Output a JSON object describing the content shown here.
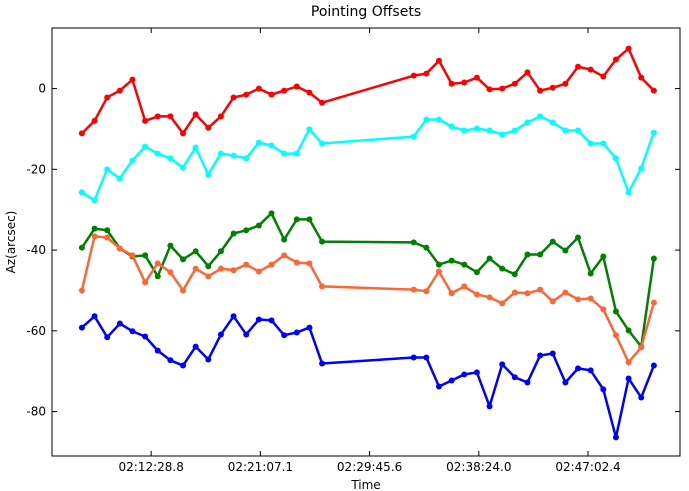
{
  "chart_data": {
    "type": "line",
    "title": "Pointing Offsets",
    "xlabel": "Time",
    "ylabel": "Az(arcsec)",
    "x": [
      "02:07:00",
      "02:08:00",
      "02:09:00",
      "02:10:00",
      "02:11:00",
      "02:12:00",
      "02:13:00",
      "02:14:00",
      "02:15:00",
      "02:16:00",
      "02:17:00",
      "02:18:00",
      "02:19:00",
      "02:20:00",
      "02:21:00",
      "02:22:00",
      "02:23:00",
      "02:24:00",
      "02:25:00",
      "02:26:00",
      "02:33:15",
      "02:34:15",
      "02:35:15",
      "02:36:15",
      "02:37:15",
      "02:38:15",
      "02:39:15",
      "02:40:15",
      "02:41:15",
      "02:42:15",
      "02:43:15",
      "02:44:15",
      "02:45:15",
      "02:46:15",
      "02:47:15",
      "02:48:15",
      "02:49:15",
      "02:50:15",
      "02:51:15",
      "02:52:15"
    ],
    "series": [
      {
        "color": "#ff0000",
        "values": [
          -11.1,
          -8,
          -2.2,
          -0.5,
          2.2,
          -8,
          -6.9,
          -6.9,
          -11.1,
          -6.4,
          -9.7,
          -6.9,
          -2.2,
          -1.5,
          0,
          -1.5,
          -0.5,
          0.5,
          -1,
          -3.5,
          3.2,
          3.7,
          6.9,
          1.2,
          1.5,
          2.7,
          -0.2,
          0,
          1.2,
          4,
          -0.5,
          0.2,
          1.2,
          5.4,
          4.7,
          3,
          7.2,
          9.9,
          2.7,
          -0.5
        ]
      },
      {
        "color": "#00ffff",
        "values": [
          -25.7,
          -27.7,
          -20,
          -22.3,
          -17.8,
          -14.4,
          -16.1,
          -17.3,
          -19.6,
          -14.6,
          -21.3,
          -16.1,
          -16.6,
          -17.3,
          -13.4,
          -14.1,
          -16.1,
          -16.1,
          -10.1,
          -13.6,
          -11.9,
          -7.7,
          -7.7,
          -9.4,
          -10.4,
          -9.9,
          -10.4,
          -11.4,
          -10.4,
          -8.4,
          -6.9,
          -8.4,
          -10.4,
          -10.4,
          -13.6,
          -13.6,
          -17.3,
          -25.7,
          -19.8,
          -10.9
        ]
      },
      {
        "color": "#008000",
        "values": [
          -39.4,
          -34.7,
          -35.1,
          -39.6,
          -41.6,
          -41.3,
          -46.5,
          -38.9,
          -42.3,
          -40.3,
          -44,
          -40.3,
          -35.9,
          -35.1,
          -33.9,
          -30.9,
          -37.4,
          -32.4,
          -32.4,
          -37.9,
          -38.1,
          -39.4,
          -43.6,
          -42.6,
          -43.6,
          -45.5,
          -42.1,
          -44.6,
          -46,
          -41.1,
          -41.1,
          -37.9,
          -40.1,
          -36.9,
          -45.8,
          -41.6,
          -55.2,
          -59.9,
          -63.9,
          -42.1
        ]
      },
      {
        "color": "#ff6633",
        "values": [
          -50,
          -36.6,
          -36.9,
          -39.6,
          -41.3,
          -48,
          -43.3,
          -45.5,
          -50,
          -44.6,
          -46.5,
          -44.6,
          -45,
          -43.6,
          -45.3,
          -43.6,
          -41.3,
          -43.1,
          -43.3,
          -49,
          -49.8,
          -50.2,
          -45.3,
          -50.7,
          -49,
          -51,
          -51.7,
          -53.2,
          -50.5,
          -50.7,
          -49.8,
          -52.7,
          -50.5,
          -52.2,
          -52,
          -54.7,
          -61.1,
          -67.8,
          -64.1,
          -53
        ]
      },
      {
        "color": "#0000ff",
        "values": [
          -59.2,
          -56.4,
          -61.6,
          -58.2,
          -60.1,
          -61.4,
          -64.9,
          -67.3,
          -68.6,
          -63.9,
          -67.1,
          -60.9,
          -56.4,
          -60.9,
          -57.2,
          -57.4,
          -61.1,
          -60.4,
          -59.2,
          -68.1,
          -66.6,
          -66.6,
          -73.8,
          -72.3,
          -70.8,
          -70.3,
          -78.7,
          -68.3,
          -71.5,
          -72.8,
          -66.1,
          -65.6,
          -72.8,
          -69.3,
          -69.8,
          -74.5,
          -86.4,
          -71.8,
          -76.5,
          -68.6
        ]
      }
    ],
    "xlim": [
      "02:04:38",
      "02:54:19"
    ],
    "xticks": [
      "02:12:28.8",
      "02:21:07.1",
      "02:29:45.6",
      "02:38:24.0",
      "02:47:02.4"
    ],
    "ylim": [
      -91,
      15
    ],
    "yticks": [
      -80,
      -60,
      -40,
      -20,
      0
    ]
  }
}
